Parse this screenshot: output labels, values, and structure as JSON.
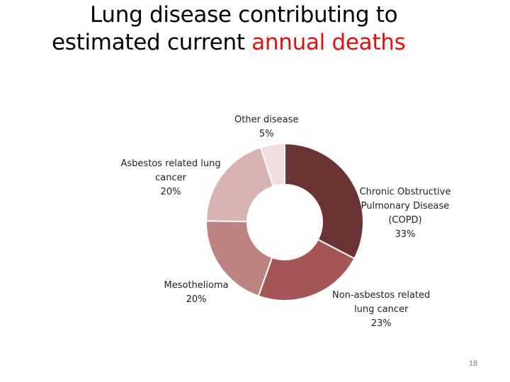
{
  "title": {
    "line1": "Lung disease contributing to",
    "line2_prefix": "estimated current ",
    "line2_highlight": "annual deaths",
    "highlight_color": "#e01010"
  },
  "page_number": "18",
  "chart_data": {
    "type": "pie",
    "donut": true,
    "slices": [
      {
        "label_lines": [
          "Chronic Obstructive",
          "Pulmonary Disease",
          "(COPD)"
        ],
        "pct_label": "33%",
        "value": 33,
        "color": "#6b3434"
      },
      {
        "label_lines": [
          "Non-asbestos related",
          "lung cancer"
        ],
        "pct_label": "23%",
        "value": 23,
        "color": "#a55757"
      },
      {
        "label_lines": [
          "Mesothelioma"
        ],
        "pct_label": "20%",
        "value": 20,
        "color": "#bd8282"
      },
      {
        "label_lines": [
          "Asbestos related lung",
          "cancer"
        ],
        "pct_label": "20%",
        "value": 20,
        "color": "#d9b2b2"
      },
      {
        "label_lines": [
          "Other disease"
        ],
        "pct_label": "5%",
        "value": 5,
        "color": "#efdfdf"
      }
    ]
  }
}
